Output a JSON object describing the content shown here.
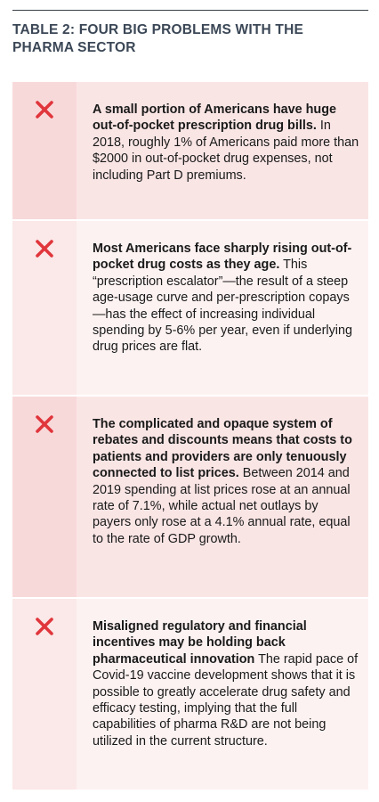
{
  "header": {
    "title": "TABLE 2: FOUR BIG PROBLEMS WITH THE PHARMA SECTOR"
  },
  "table": {
    "rows": [
      {
        "lead": "A small portion of Americans have huge out-of-pocket prescription drug bills.",
        "body": "In 2018, roughly 1% of Americans paid more than $2000 in out-of-pocket drug expenses, not including Part D premiums."
      },
      {
        "lead": "Most Americans face sharply rising out-of-pocket drug costs as they age.",
        "body": "This “prescription escalator”—the result of a steep age-usage curve and per-prescription copays—has the effect of increasing individual spending by 5-6% per year, even if underlying drug prices are flat."
      },
      {
        "lead": "The complicated and opaque system of rebates and discounts means that costs to patients and providers are only tenuously connected to list prices.",
        "body": "Between 2014 and 2019 spending at list prices rose at an annual rate of 7.1%, while actual net outlays by payers only rose at a 4.1% annual rate, equal to the rate of GDP growth."
      },
      {
        "lead": "Misaligned regulatory and financial incentives may be holding back pharmaceutical innovation",
        "body": "The rapid pace of Covid-19 vaccine development shows that it is possible to greatly accelerate drug safety and efficacy testing, implying that the full capabilities of pharma R&D are not being utilized in the current structure."
      }
    ]
  }
}
